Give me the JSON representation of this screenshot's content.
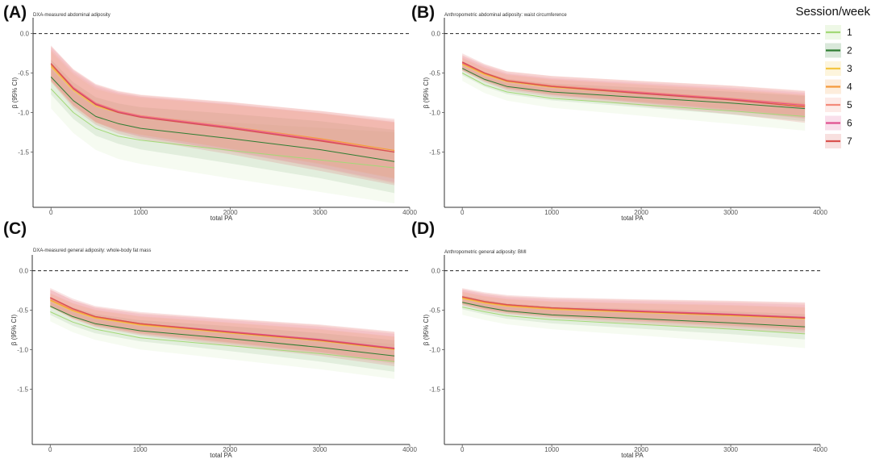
{
  "legend": {
    "title": "Session/week",
    "items": [
      {
        "label": "1",
        "color": "#a3d977"
      },
      {
        "label": "2",
        "color": "#2e7d32"
      },
      {
        "label": "3",
        "color": "#f4c542"
      },
      {
        "label": "4",
        "color": "#f59a3c"
      },
      {
        "label": "5",
        "color": "#f48a7a"
      },
      {
        "label": "6",
        "color": "#e0508f"
      },
      {
        "label": "7",
        "color": "#d9534f"
      }
    ]
  },
  "chart_data": [
    {
      "type": "line",
      "panel": "(A)",
      "title": "DXA-measured abdominal adiposity",
      "xlabel": "total PA",
      "ylabel": "β (95% CI)",
      "xlim": [
        -200,
        4000
      ],
      "ylim": [
        -2.2,
        0.2
      ],
      "xticks": [
        0,
        1000,
        2000,
        3000,
        4000
      ],
      "yticks": [
        0.0,
        -0.5,
        -1.0,
        -1.5
      ],
      "reference_line": 0.0,
      "series": [
        {
          "name": "1",
          "x": [
            0,
            250,
            500,
            750,
            1000,
            2000,
            3000,
            3830
          ],
          "y": [
            -0.7,
            -1.0,
            -1.2,
            -1.3,
            -1.35,
            -1.48,
            -1.6,
            -1.7
          ],
          "ci_width": 0.45
        },
        {
          "name": "2",
          "x": [
            0,
            250,
            500,
            750,
            1000,
            2000,
            3000,
            3830
          ],
          "y": [
            -0.55,
            -0.85,
            -1.05,
            -1.14,
            -1.2,
            -1.33,
            -1.47,
            -1.62
          ],
          "ci_width": 0.4
        },
        {
          "name": "3",
          "x": [
            0,
            250,
            500,
            750,
            1000,
            2000,
            3000,
            3830
          ],
          "y": [
            -0.42,
            -0.72,
            -0.92,
            -1.0,
            -1.05,
            -1.18,
            -1.33,
            -1.48
          ],
          "ci_width": 0.35
        },
        {
          "name": "4",
          "x": [
            0,
            250,
            500,
            750,
            1000,
            2000,
            3000,
            3830
          ],
          "y": [
            -0.4,
            -0.7,
            -0.9,
            -0.99,
            -1.04,
            -1.18,
            -1.33,
            -1.48
          ],
          "ci_width": 0.36
        },
        {
          "name": "5",
          "x": [
            0,
            250,
            500,
            750,
            1000,
            2000,
            3000,
            3830
          ],
          "y": [
            -0.38,
            -0.68,
            -0.88,
            -0.98,
            -1.04,
            -1.18,
            -1.34,
            -1.5
          ],
          "ci_width": 0.4
        },
        {
          "name": "6",
          "x": [
            0,
            250,
            500,
            750,
            1000,
            2000,
            3000,
            3830
          ],
          "y": [
            -0.38,
            -0.69,
            -0.89,
            -0.99,
            -1.05,
            -1.19,
            -1.35,
            -1.5
          ],
          "ci_width": 0.38
        },
        {
          "name": "7",
          "x": [
            0,
            250,
            500,
            750,
            1000,
            2000,
            3000,
            3830
          ],
          "y": [
            -0.38,
            -0.7,
            -0.9,
            -1.0,
            -1.06,
            -1.2,
            -1.36,
            -1.5
          ],
          "ci_width": 0.42
        }
      ]
    },
    {
      "type": "line",
      "panel": "(B)",
      "title": "Anthropometric abdominal adiposity: waist circumference",
      "xlabel": "total PA",
      "ylabel": "β (95% CI)",
      "xlim": [
        -200,
        4000
      ],
      "ylim": [
        -2.2,
        0.2
      ],
      "xticks": [
        0,
        1000,
        2000,
        3000,
        4000
      ],
      "yticks": [
        0.0,
        -0.5,
        -1.0,
        -1.5
      ],
      "reference_line": 0.0,
      "series": [
        {
          "name": "1",
          "x": [
            0,
            250,
            500,
            1000,
            2000,
            3000,
            3830
          ],
          "y": [
            -0.5,
            -0.65,
            -0.74,
            -0.82,
            -0.9,
            -0.98,
            -1.05
          ],
          "ci_width": 0.18
        },
        {
          "name": "2",
          "x": [
            0,
            250,
            500,
            1000,
            2000,
            3000,
            3830
          ],
          "y": [
            -0.44,
            -0.58,
            -0.67,
            -0.74,
            -0.81,
            -0.88,
            -0.95
          ],
          "ci_width": 0.16
        },
        {
          "name": "3",
          "x": [
            0,
            250,
            500,
            1000,
            2000,
            3000,
            3830
          ],
          "y": [
            -0.39,
            -0.52,
            -0.61,
            -0.68,
            -0.76,
            -0.84,
            -0.92
          ],
          "ci_width": 0.14
        },
        {
          "name": "4",
          "x": [
            0,
            250,
            500,
            1000,
            2000,
            3000,
            3830
          ],
          "y": [
            -0.38,
            -0.51,
            -0.6,
            -0.67,
            -0.75,
            -0.83,
            -0.91
          ],
          "ci_width": 0.14
        },
        {
          "name": "5",
          "x": [
            0,
            250,
            500,
            1000,
            2000,
            3000,
            3830
          ],
          "y": [
            -0.37,
            -0.5,
            -0.59,
            -0.66,
            -0.74,
            -0.82,
            -0.9
          ],
          "ci_width": 0.18
        },
        {
          "name": "6",
          "x": [
            0,
            250,
            500,
            1000,
            2000,
            3000,
            3830
          ],
          "y": [
            -0.37,
            -0.5,
            -0.6,
            -0.67,
            -0.75,
            -0.83,
            -0.91
          ],
          "ci_width": 0.16
        },
        {
          "name": "7",
          "x": [
            0,
            250,
            500,
            1000,
            2000,
            3000,
            3830
          ],
          "y": [
            -0.36,
            -0.5,
            -0.6,
            -0.67,
            -0.76,
            -0.84,
            -0.93
          ],
          "ci_width": 0.2
        }
      ]
    },
    {
      "type": "line",
      "panel": "(C)",
      "title": "DXA-measured general adiposity: whole-body fat mass",
      "xlabel": "total PA",
      "ylabel": "β (95% CI)",
      "xlim": [
        -200,
        4000
      ],
      "ylim": [
        -2.2,
        0.2
      ],
      "xticks": [
        0,
        1000,
        2000,
        3000,
        4000
      ],
      "yticks": [
        0.0,
        -0.5,
        -1.0,
        -1.5
      ],
      "reference_line": 0.0,
      "series": [
        {
          "name": "1",
          "x": [
            0,
            250,
            500,
            1000,
            2000,
            3000,
            3830
          ],
          "y": [
            -0.52,
            -0.65,
            -0.74,
            -0.85,
            -0.95,
            -1.05,
            -1.15
          ],
          "ci_width": 0.22
        },
        {
          "name": "2",
          "x": [
            0,
            250,
            500,
            1000,
            2000,
            3000,
            3830
          ],
          "y": [
            -0.45,
            -0.58,
            -0.67,
            -0.76,
            -0.86,
            -0.97,
            -1.08
          ],
          "ci_width": 0.2
        },
        {
          "name": "3",
          "x": [
            0,
            250,
            500,
            1000,
            2000,
            3000,
            3830
          ],
          "y": [
            -0.38,
            -0.51,
            -0.6,
            -0.69,
            -0.79,
            -0.89,
            -1.0
          ],
          "ci_width": 0.16
        },
        {
          "name": "4",
          "x": [
            0,
            250,
            500,
            1000,
            2000,
            3000,
            3830
          ],
          "y": [
            -0.37,
            -0.5,
            -0.59,
            -0.68,
            -0.78,
            -0.88,
            -0.99
          ],
          "ci_width": 0.16
        },
        {
          "name": "5",
          "x": [
            0,
            250,
            500,
            1000,
            2000,
            3000,
            3830
          ],
          "y": [
            -0.35,
            -0.49,
            -0.58,
            -0.67,
            -0.77,
            -0.87,
            -0.98
          ],
          "ci_width": 0.2
        },
        {
          "name": "6",
          "x": [
            0,
            250,
            500,
            1000,
            2000,
            3000,
            3830
          ],
          "y": [
            -0.34,
            -0.48,
            -0.58,
            -0.67,
            -0.77,
            -0.87,
            -0.98
          ],
          "ci_width": 0.18
        },
        {
          "name": "7",
          "x": [
            0,
            250,
            500,
            1000,
            2000,
            3000,
            3830
          ],
          "y": [
            -0.34,
            -0.48,
            -0.58,
            -0.67,
            -0.78,
            -0.88,
            -0.99
          ],
          "ci_width": 0.22
        }
      ]
    },
    {
      "type": "line",
      "panel": "(D)",
      "title": "Anthropometric general adiposity: BMI",
      "xlabel": "total PA",
      "ylabel": "β (95% CI)",
      "xlim": [
        -200,
        4000
      ],
      "ylim": [
        -2.2,
        0.2
      ],
      "xticks": [
        0,
        1000,
        2000,
        3000,
        4000
      ],
      "yticks": [
        0.0,
        -0.5,
        -1.0,
        -1.5
      ],
      "reference_line": 0.0,
      "series": [
        {
          "name": "1",
          "x": [
            0,
            250,
            500,
            1000,
            2000,
            3000,
            3830
          ],
          "y": [
            -0.46,
            -0.52,
            -0.57,
            -0.62,
            -0.68,
            -0.74,
            -0.8
          ],
          "ci_width": 0.18
        },
        {
          "name": "2",
          "x": [
            0,
            250,
            500,
            1000,
            2000,
            3000,
            3830
          ],
          "y": [
            -0.4,
            -0.46,
            -0.51,
            -0.56,
            -0.61,
            -0.66,
            -0.71
          ],
          "ci_width": 0.16
        },
        {
          "name": "3",
          "x": [
            0,
            250,
            500,
            1000,
            2000,
            3000,
            3830
          ],
          "y": [
            -0.35,
            -0.41,
            -0.45,
            -0.49,
            -0.53,
            -0.57,
            -0.61
          ],
          "ci_width": 0.14
        },
        {
          "name": "4",
          "x": [
            0,
            250,
            500,
            1000,
            2000,
            3000,
            3830
          ],
          "y": [
            -0.34,
            -0.4,
            -0.44,
            -0.48,
            -0.52,
            -0.56,
            -0.6
          ],
          "ci_width": 0.14
        },
        {
          "name": "5",
          "x": [
            0,
            250,
            500,
            1000,
            2000,
            3000,
            3830
          ],
          "y": [
            -0.33,
            -0.39,
            -0.43,
            -0.47,
            -0.51,
            -0.55,
            -0.59
          ],
          "ci_width": 0.18
        },
        {
          "name": "6",
          "x": [
            0,
            250,
            500,
            1000,
            2000,
            3000,
            3830
          ],
          "y": [
            -0.33,
            -0.39,
            -0.43,
            -0.47,
            -0.51,
            -0.55,
            -0.59
          ],
          "ci_width": 0.16
        },
        {
          "name": "7",
          "x": [
            0,
            250,
            500,
            1000,
            2000,
            3000,
            3830
          ],
          "y": [
            -0.33,
            -0.39,
            -0.43,
            -0.47,
            -0.52,
            -0.56,
            -0.6
          ],
          "ci_width": 0.2
        }
      ]
    }
  ]
}
